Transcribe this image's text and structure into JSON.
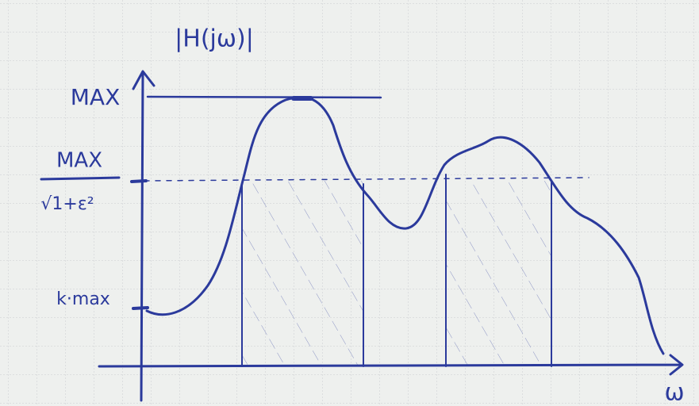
{
  "labels": {
    "y_axis": "|H(jω)|",
    "max": "MAX",
    "fraction_numerator": "MAX",
    "fraction_denominator": "√1+ε²",
    "k_max": "k·max",
    "x_axis": "ω"
  }
}
